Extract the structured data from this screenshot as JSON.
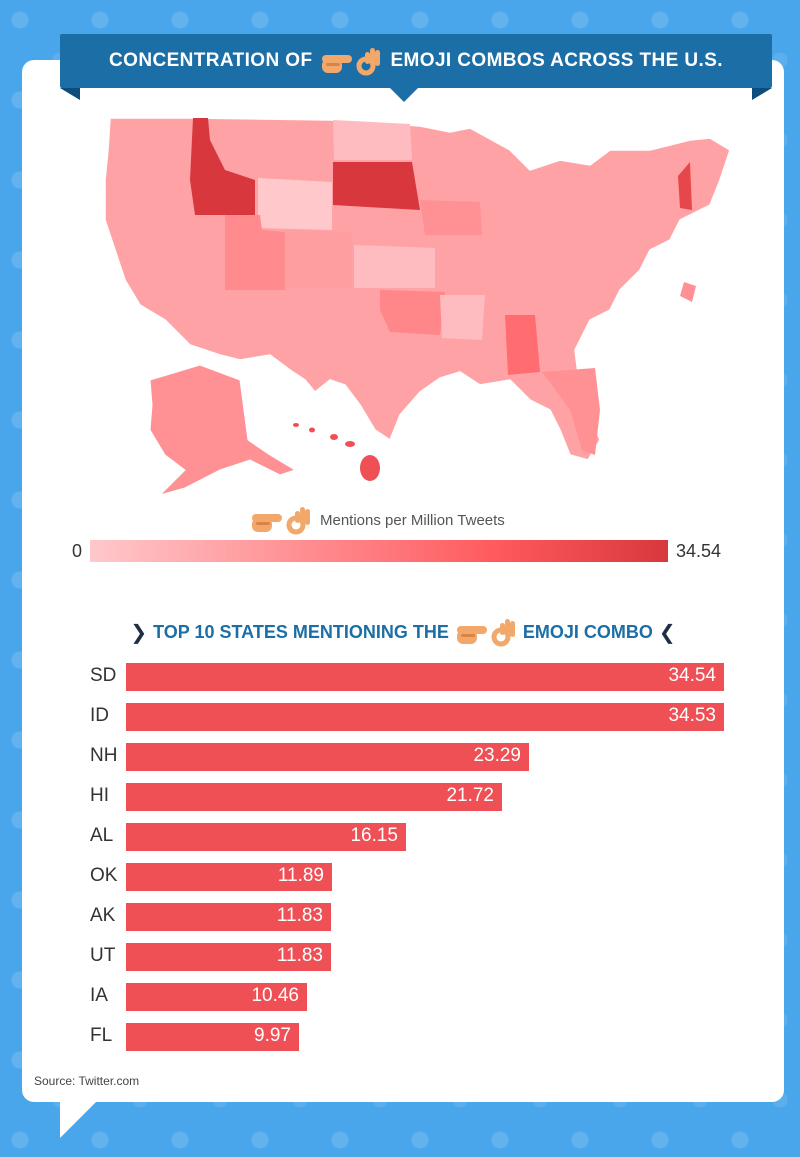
{
  "title": {
    "before": "CONCENTRATION OF",
    "after": "EMOJI COMBOS ACROSS THE U.S."
  },
  "map": {
    "legend_title": "Mentions per Million Tweets",
    "legend_min": "0",
    "legend_max": "34.54",
    "colors": {
      "low": "#ffc8cb",
      "mid": "#ff8b8e",
      "high": "#d8383d"
    }
  },
  "section": {
    "heading_before": "TOP 10 STATES MENTIONING THE",
    "heading_after": "EMOJI COMBO",
    "left_chevron": "❯",
    "right_chevron": "❮"
  },
  "chart_data": {
    "type": "bar",
    "orientation": "horizontal",
    "categories": [
      "SD",
      "ID",
      "NH",
      "HI",
      "AL",
      "OK",
      "AK",
      "UT",
      "IA",
      "FL"
    ],
    "values": [
      34.54,
      34.53,
      23.29,
      21.72,
      16.15,
      11.89,
      11.83,
      11.83,
      10.46,
      9.97
    ],
    "labels": [
      "34.54",
      "34.53",
      "23.29",
      "21.72",
      "16.15",
      "11.89",
      "11.83",
      "11.83",
      "10.46",
      "9.97"
    ],
    "xlim": [
      0,
      34.54
    ],
    "bar_color": "#ee5055",
    "title": "",
    "xlabel": "",
    "ylabel": ""
  },
  "source": "Source: Twitter.com",
  "icons": {
    "pointing_hand": "backhand-index-pointing-right-icon",
    "ok_hand": "ok-hand-icon"
  }
}
